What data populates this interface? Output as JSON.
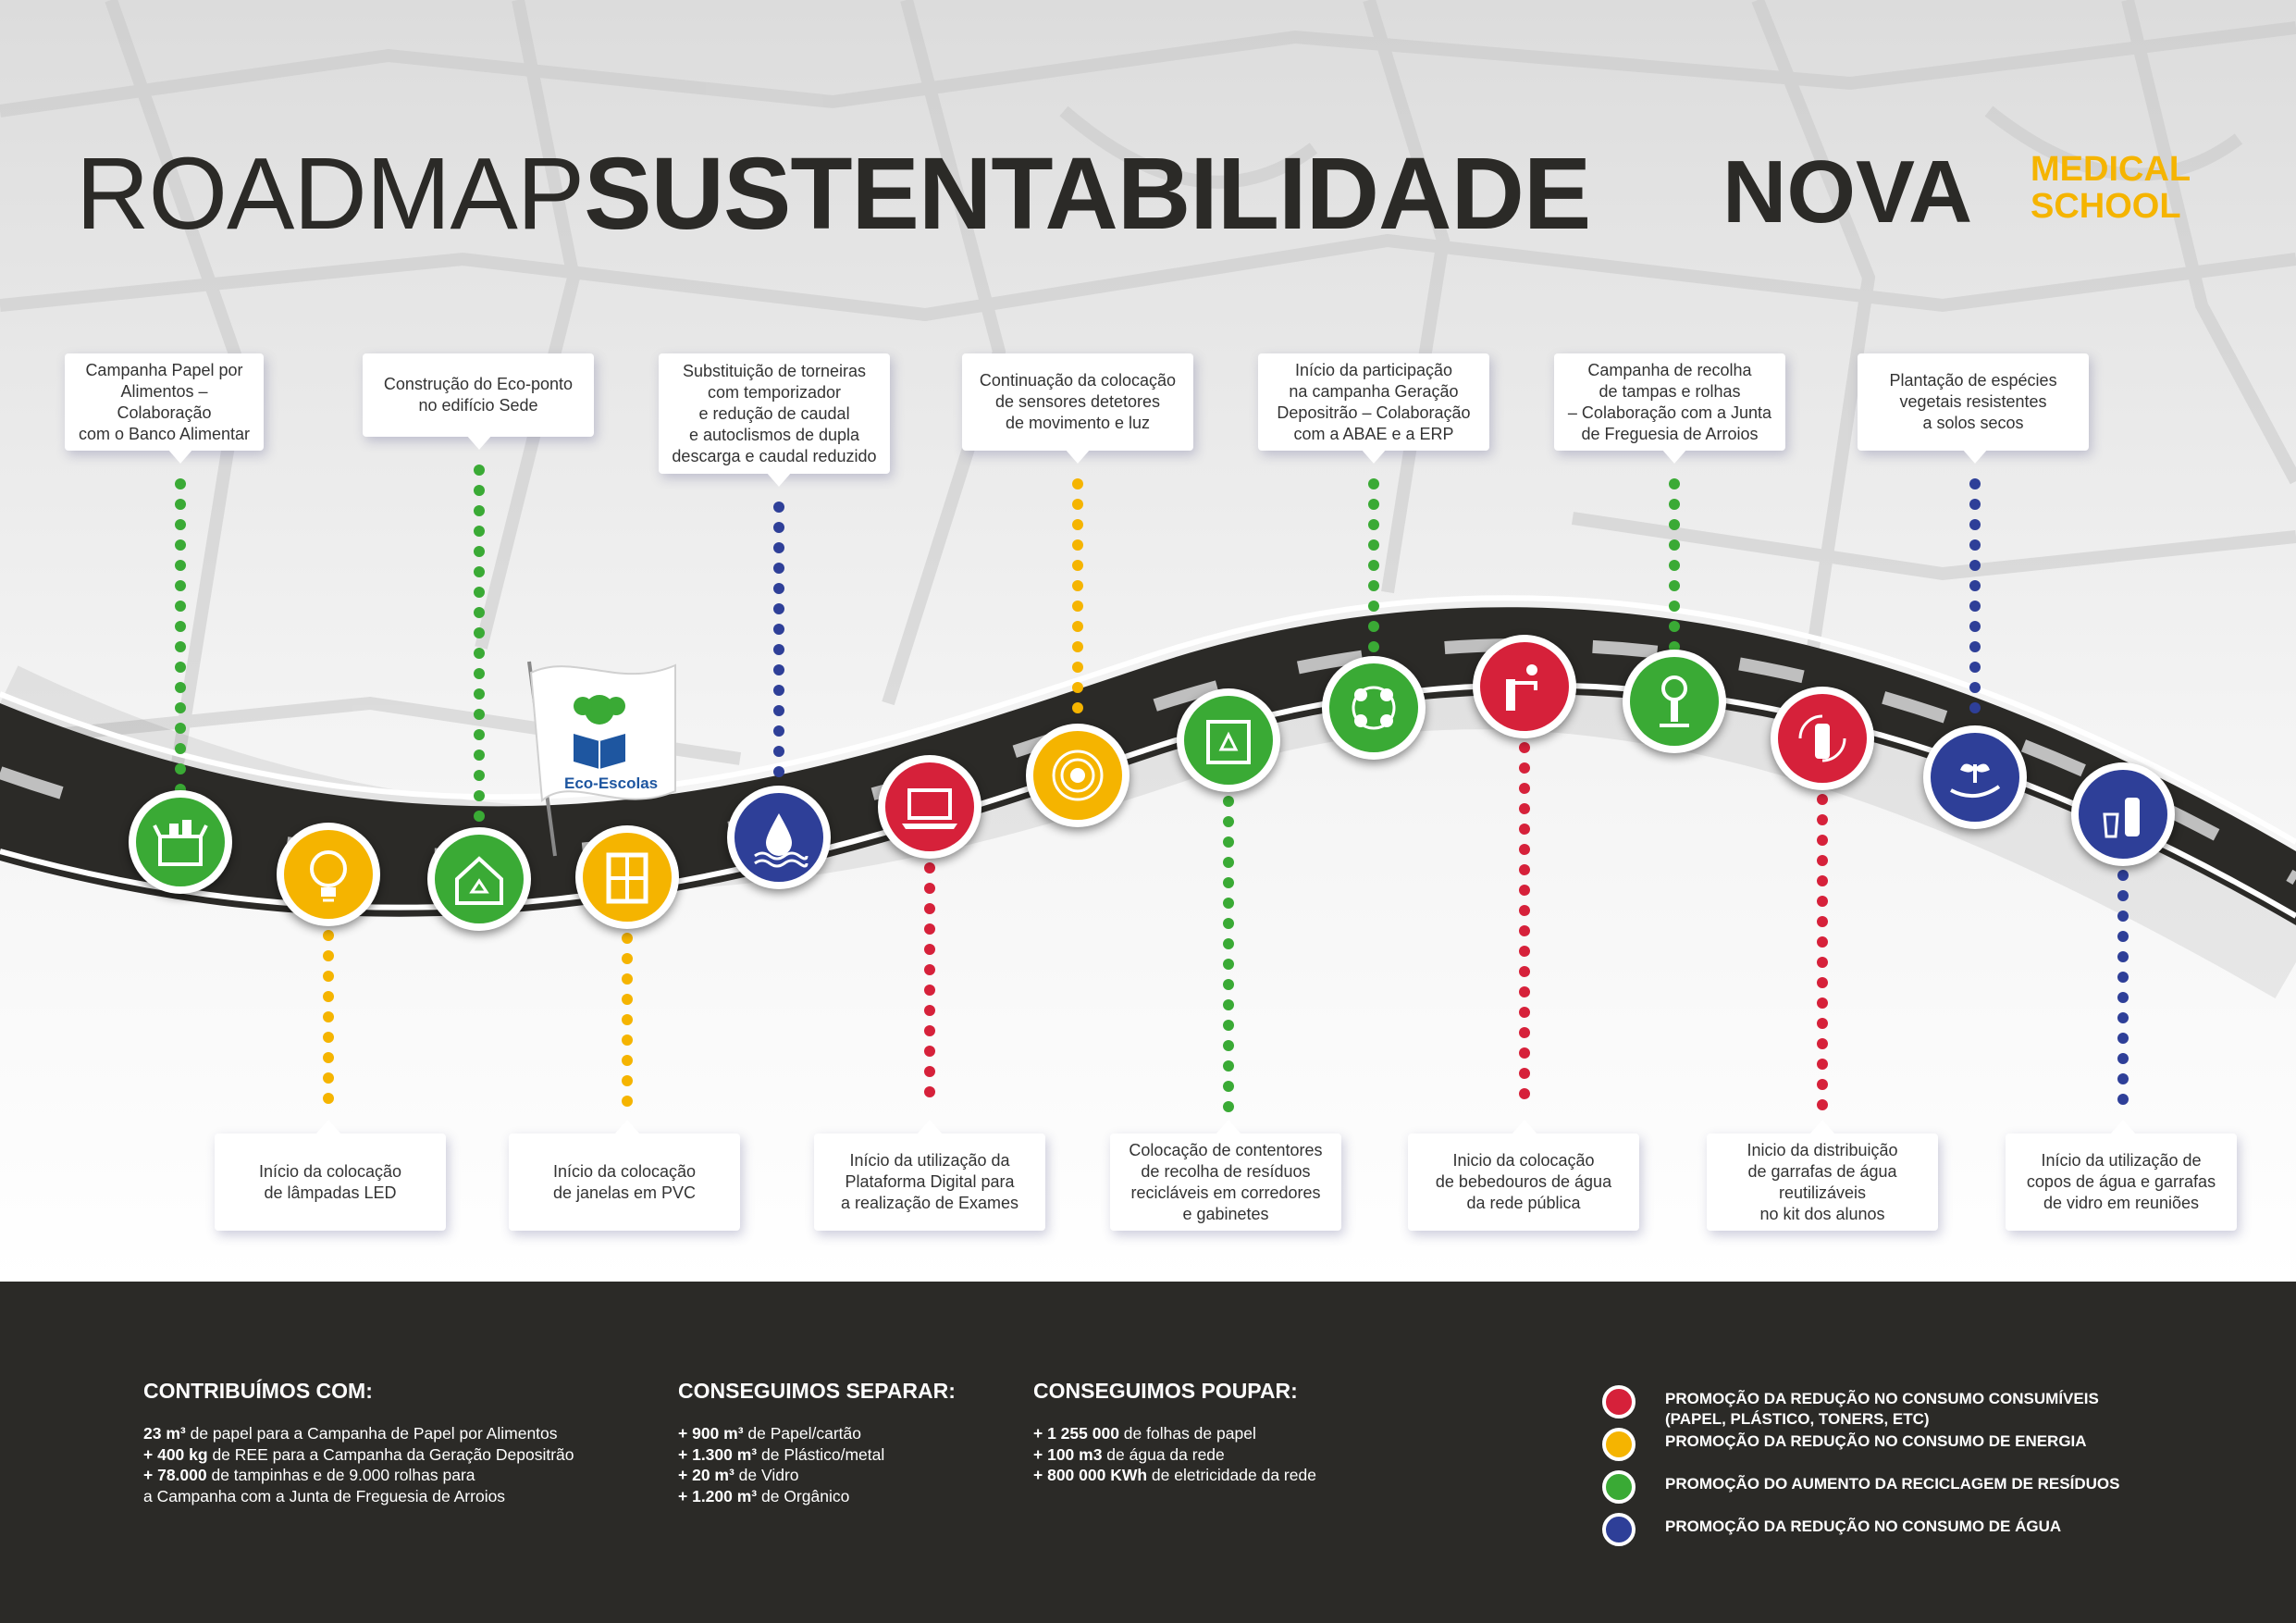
{
  "title": {
    "light": "ROADMAP",
    "bold": "SUSTENTABILIDADE"
  },
  "logo": {
    "main": "NOVA",
    "line1": "MEDICAL",
    "line2": "SCHOOL",
    "accent": "#f5b400"
  },
  "flag_label": "Eco-Escolas",
  "colors": {
    "red": "#d6213a",
    "yellow": "#f5b400",
    "green": "#3aaa35",
    "blue": "#2e3f98",
    "dark": "#2b2a27"
  },
  "milestones": [
    {
      "icon": "food-box-icon",
      "color": "green",
      "text": [
        "Campanha Papel por",
        "Alimentos – Colaboração",
        "com o Banco Alimentar"
      ]
    },
    {
      "icon": "lightbulb-icon",
      "color": "yellow",
      "text": [
        "Início da colocação",
        "de lâmpadas LED"
      ]
    },
    {
      "icon": "recycle-house-icon",
      "color": "green",
      "text": [
        "Construção do Eco-ponto",
        "no edifício Sede"
      ]
    },
    {
      "icon": "window-icon",
      "color": "yellow",
      "text": [
        "Início da colocação",
        "de janelas em PVC"
      ]
    },
    {
      "icon": "water-drop-icon",
      "color": "blue",
      "text": [
        "Substituição de torneiras",
        "com temporizador",
        "e redução de caudal",
        "e autoclismos de dupla",
        "descarga e caudal reduzido"
      ]
    },
    {
      "icon": "laptop-icon",
      "color": "red",
      "text": [
        "Início da utilização da",
        "Plataforma Digital para",
        "a realização de Exames"
      ]
    },
    {
      "icon": "motion-sensor-icon",
      "color": "yellow",
      "text": [
        "Continuação da colocação",
        "de sensores detetores",
        "de movimento e luz"
      ]
    },
    {
      "icon": "recycle-bin-icon",
      "color": "green",
      "text": [
        "Colocação de contentores",
        "de recolha de resíduos",
        "recicláveis em corredores",
        "e gabinetes"
      ]
    },
    {
      "icon": "circular-people-icon",
      "color": "green",
      "text": [
        "Início da participação",
        "na campanha Geração",
        "Depositrão – Colaboração",
        "com a ABAE e a ERP"
      ]
    },
    {
      "icon": "water-fountain-icon",
      "color": "red",
      "text": [
        "Inicio da colocação",
        "de bebedouros de água",
        "da rede pública"
      ]
    },
    {
      "icon": "cork-tree-icon",
      "color": "green",
      "text": [
        "Campanha de recolha",
        "de tampas e rolhas",
        "– Colaboração com a Junta",
        "de Freguesia de Arroios"
      ]
    },
    {
      "icon": "reusable-bottle-icon",
      "color": "red",
      "text": [
        "Inicio da distribuição",
        "de garrafas de água",
        "reutilizáveis",
        "no kit dos alunos"
      ]
    },
    {
      "icon": "hand-plant-icon",
      "color": "blue",
      "text": [
        "Plantação de espécies",
        "vegetais resistentes",
        "a solos secos"
      ]
    },
    {
      "icon": "glass-bottle-icon",
      "color": "blue",
      "text": [
        "Início da utilização de",
        "copos de água e garrafas",
        "de vidro em reuniões"
      ]
    }
  ],
  "footer": {
    "contribuimos": {
      "heading": "CONTRIBUÍMOS COM:",
      "lines": [
        {
          "bold": "23 m³",
          "rest": " de papel para a Campanha de Papel por Alimentos"
        },
        {
          "bold": "+ 400 kg",
          "rest": " de REE para a Campanha da Geração Depositrão"
        },
        {
          "bold": "+ 78.000",
          "rest": " de tampinhas e de 9.000 rolhas para"
        },
        {
          "bold": "",
          "rest": "a Campanha com a Junta de Freguesia de Arroios"
        }
      ]
    },
    "separar": {
      "heading": "CONSEGUIMOS SEPARAR:",
      "lines": [
        {
          "bold": "+ 900 m³",
          "rest": " de Papel/cartão"
        },
        {
          "bold": "+ 1.300 m³",
          "rest": " de Plástico/metal"
        },
        {
          "bold": "+ 20 m³",
          "rest": " de Vidro"
        },
        {
          "bold": "+ 1.200 m³",
          "rest": " de Orgânico"
        }
      ]
    },
    "poupar": {
      "heading": "CONSEGUIMOS POUPAR:",
      "lines": [
        {
          "bold": "+ 1 255 000",
          "rest": " de folhas de papel"
        },
        {
          "bold": "+ 100 m3",
          "rest": " de água da rede"
        },
        {
          "bold": "+ 800 000 KWh",
          "rest": " de eletricidade da rede"
        }
      ]
    }
  },
  "legend": [
    {
      "color": "red",
      "lines": [
        "PROMOÇÃO DA REDUÇÃO NO CONSUMO CONSUMÍVEIS",
        "(PAPEL, PLÁSTICO, TONERS, ETC)"
      ]
    },
    {
      "color": "yellow",
      "lines": [
        "PROMOÇÃO DA REDUÇÃO NO CONSUMO DE ENERGIA"
      ]
    },
    {
      "color": "green",
      "lines": [
        "PROMOÇÃO DO AUMENTO DA RECICLAGEM DE RESÍDUOS"
      ]
    },
    {
      "color": "blue",
      "lines": [
        "PROMOÇÃO DA REDUÇÃO NO CONSUMO DE ÁGUA"
      ]
    }
  ]
}
